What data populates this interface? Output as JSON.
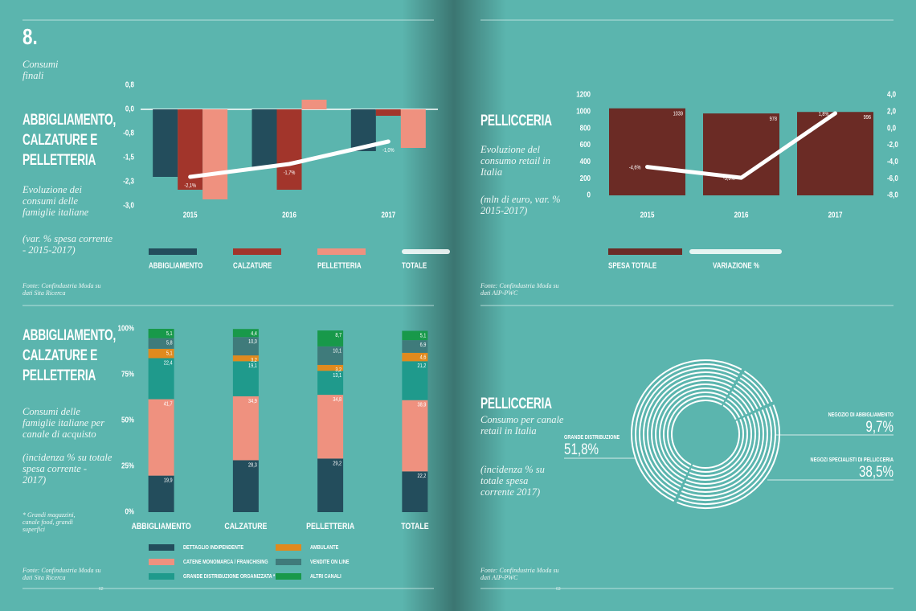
{
  "page": {
    "number": "8.",
    "section": "Consumi finali",
    "page_numbers": [
      "62",
      "63"
    ]
  },
  "chart_data": [
    {
      "type": "bar",
      "title": "ABBIGLIAMENTO, CALZATURE E PELLETTERIA",
      "subtitle": "Evoluzione dei consumi delle famiglie italiane",
      "note": "(var. % spesa corrente - 2015-2017)",
      "source": "Fonte: Confindustria Moda su dati Sita Ricerca",
      "categories": [
        "2015",
        "2016",
        "2017"
      ],
      "series": [
        {
          "name": "ABBIGLIAMENTO",
          "color": "#234d5c",
          "values": [
            -2.1,
            -1.8,
            -1.3
          ]
        },
        {
          "name": "CALZATURE",
          "color": "#a2352b",
          "values": [
            -2.5,
            -2.5,
            -0.2
          ]
        },
        {
          "name": "PELLETTERIA",
          "color": "#ef917f",
          "values": [
            -2.8,
            0.3,
            -1.2
          ]
        },
        {
          "name": "TOTALE",
          "type": "line",
          "color": "#ffffff",
          "values": [
            -2.1,
            -1.7,
            -1.0
          ],
          "value_labels": [
            "-2,1%",
            "-1,7%",
            "-1,0%"
          ]
        }
      ],
      "ylim": [
        -3,
        0.75
      ],
      "yticks": [
        {
          "value": 0.75,
          "label": "0,8"
        },
        {
          "value": 0,
          "label": "0,0"
        },
        {
          "value": -0.75,
          "label": "-0,8"
        },
        {
          "value": -1.5,
          "label": "-1,5"
        },
        {
          "value": -2.25,
          "label": "-2,3"
        },
        {
          "value": -3,
          "label": "-3,0"
        }
      ]
    },
    {
      "type": "bar",
      "title": "PELLICCERIA",
      "subtitle": "Evoluzione del consumo retail in Italia",
      "note": "(mln di euro, var. % 2015-2017)",
      "source": "Fonte: Confindustria Moda su dati AIP-PWC",
      "categories": [
        "2015",
        "2016",
        "2017"
      ],
      "series": [
        {
          "name": "SPESA TOTALE",
          "color": "#6b2b25",
          "values": [
            1039,
            978,
            996
          ],
          "show_values": true
        },
        {
          "name": "VARIAZIONE %",
          "type": "line",
          "axis": "y2",
          "color": "#ffffff",
          "values": [
            -4.6,
            -5.9,
            1.8
          ],
          "value_labels": [
            "-4,6%",
            "-5,9%",
            "1,8%"
          ]
        }
      ],
      "ylim": [
        0,
        1200
      ],
      "yticks": [
        0,
        200,
        400,
        600,
        800,
        1000,
        1200
      ],
      "y2lim": [
        -8,
        4
      ],
      "y2ticks": [
        {
          "value": 4,
          "label": "4,0"
        },
        {
          "value": 2,
          "label": "2,0"
        },
        {
          "value": 0,
          "label": "0,0"
        },
        {
          "value": -2,
          "label": "-2,0"
        },
        {
          "value": -4,
          "label": "-4,0"
        },
        {
          "value": -6,
          "label": "-6,0"
        },
        {
          "value": -8,
          "label": "-8,0"
        }
      ]
    },
    {
      "type": "stacked_bar",
      "title": "ABBIGLIAMENTO, CALZATURE E PELLETTERIA",
      "subtitle": "Consumi delle famiglie italiane per canale di acquisto",
      "note": "(incidenza % su totale spesa corrente - 2017)",
      "footnote": "* Grandi magazzini, canale food, grandi superfici",
      "source": "Fonte: Confindustria Moda su dati Sita Ricerca",
      "categories": [
        "ABBIGLIAMENTO",
        "CALZATURE",
        "PELLETTERIA",
        "TOTALE"
      ],
      "series": [
        {
          "name": "DETTAGLIO INDIPENDENTE",
          "color": "#234d5c",
          "values": [
            19.9,
            28.3,
            29.2,
            22.2
          ],
          "value_labels": [
            "19,9",
            "28,3",
            "29,2",
            "22,2"
          ]
        },
        {
          "name": "CATENE MONOMARCA / FRANCHISING",
          "color": "#ef917f",
          "values": [
            41.7,
            34.9,
            34.8,
            38.9
          ],
          "value_labels": [
            "41,7",
            "34,9",
            "34,8",
            "38,9"
          ]
        },
        {
          "name": "GRANDE DISTRIBUZIONE ORGANIZZATA *",
          "color": "#1f9a8c",
          "values": [
            22.4,
            19.1,
            13.1,
            21.2
          ],
          "value_labels": [
            "22,4",
            "19,1",
            "13,1",
            "21,2"
          ]
        },
        {
          "name": "AMBULANTE",
          "color": "#e08a1e",
          "values": [
            5.1,
            3.2,
            3.2,
            4.6
          ],
          "value_labels": [
            "5,1",
            "3,2",
            "3,2",
            "4,6"
          ]
        },
        {
          "name": "VENDITE ON LINE",
          "color": "#3f7b7b",
          "values": [
            5.8,
            10.0,
            10.1,
            6.9
          ],
          "value_labels": [
            "5,8",
            "10,0",
            "10,1",
            "6,9"
          ]
        },
        {
          "name": "ALTRI CANALI",
          "color": "#18994a",
          "values": [
            5.1,
            4.4,
            8.7,
            5.1
          ],
          "value_labels": [
            "5,1",
            "4,4",
            "8,7",
            "5,1"
          ]
        }
      ],
      "ylim": [
        0,
        100
      ],
      "yticks": [
        {
          "value": 100,
          "label": "100%"
        },
        {
          "value": 75,
          "label": "75%"
        },
        {
          "value": 50,
          "label": "50%"
        },
        {
          "value": 25,
          "label": "25%"
        },
        {
          "value": 0,
          "label": "0%"
        }
      ]
    },
    {
      "type": "donut",
      "title": "PELLICCERIA",
      "subtitle": "Consumo per canale retail in Italia",
      "note": "(incidenza % su totale spesa corrente 2017)",
      "source": "Fonte: Confindustria Moda su dati AIP-PWC",
      "categories": [
        "GRANDE DISTRIBUZIONE",
        "NEGOZIO DI ABBIGLIAMENTO",
        "NEGOZI SPECIALISTI DI PELLICCERIA"
      ],
      "values": [
        51.8,
        9.7,
        38.5
      ],
      "value_labels": [
        "51,8%",
        "9,7%",
        "38,5%"
      ],
      "color": "#ffffff"
    }
  ]
}
